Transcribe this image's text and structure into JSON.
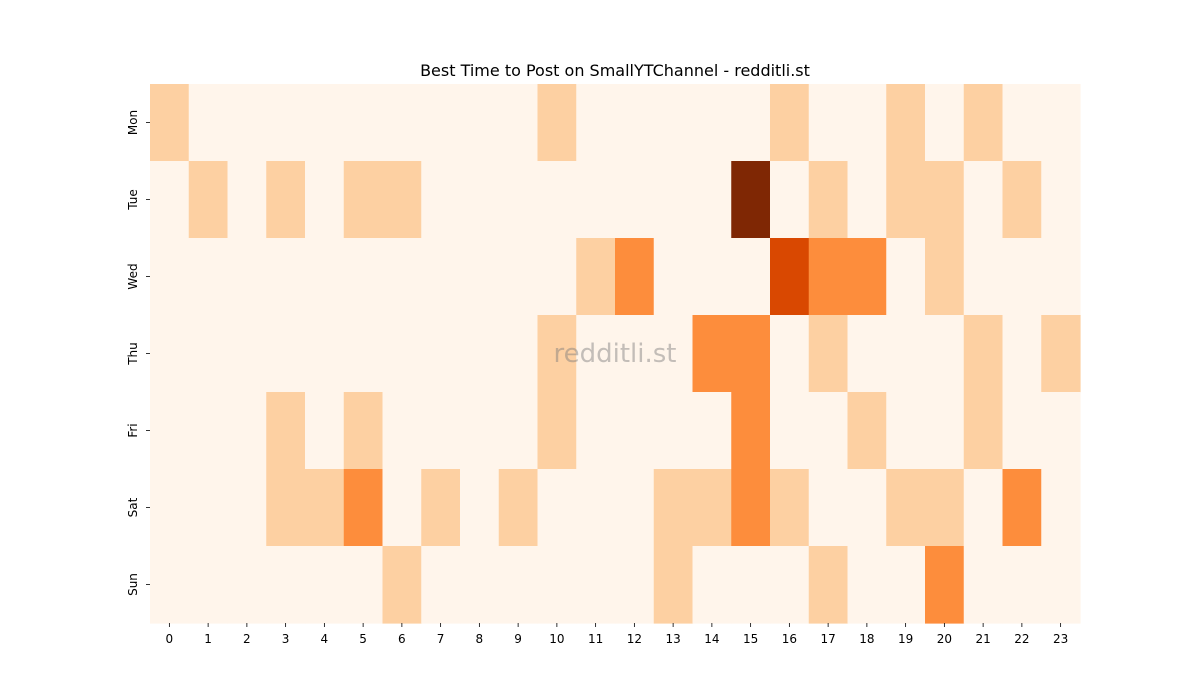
{
  "chart_data": {
    "type": "heatmap",
    "title": "Best Time to Post on SmallYTChannel - redditli.st",
    "xlabel": "",
    "ylabel": "",
    "watermark": "redditli.st",
    "x_categories": [
      "0",
      "1",
      "2",
      "3",
      "4",
      "5",
      "6",
      "7",
      "8",
      "9",
      "10",
      "11",
      "12",
      "13",
      "14",
      "15",
      "16",
      "17",
      "18",
      "19",
      "20",
      "21",
      "22",
      "23"
    ],
    "y_categories": [
      "Mon",
      "Tue",
      "Wed",
      "Thu",
      "Fri",
      "Sat",
      "Sun"
    ],
    "value_range": [
      0,
      4
    ],
    "colormap": "Oranges",
    "colors": [
      "#fff5eb",
      "#fdd0a2",
      "#fd8d3c",
      "#d94801",
      "#7f2704"
    ],
    "values": [
      [
        1,
        0,
        0,
        0,
        0,
        0,
        0,
        0,
        0,
        0,
        1,
        0,
        0,
        0,
        0,
        0,
        1,
        0,
        0,
        1,
        0,
        1,
        0,
        0
      ],
      [
        0,
        1,
        0,
        1,
        0,
        1,
        1,
        0,
        0,
        0,
        0,
        0,
        0,
        0,
        0,
        4,
        0,
        1,
        0,
        1,
        1,
        0,
        1,
        0
      ],
      [
        0,
        0,
        0,
        0,
        0,
        0,
        0,
        0,
        0,
        0,
        0,
        1,
        2,
        0,
        0,
        0,
        3,
        2,
        2,
        0,
        1,
        0,
        0,
        0
      ],
      [
        0,
        0,
        0,
        0,
        0,
        0,
        0,
        0,
        0,
        0,
        1,
        0,
        0,
        0,
        2,
        2,
        0,
        1,
        0,
        0,
        0,
        1,
        0,
        1
      ],
      [
        0,
        0,
        0,
        1,
        0,
        1,
        0,
        0,
        0,
        0,
        1,
        0,
        0,
        0,
        0,
        2,
        0,
        0,
        1,
        0,
        0,
        1,
        0,
        0
      ],
      [
        0,
        0,
        0,
        1,
        1,
        2,
        0,
        1,
        0,
        1,
        0,
        0,
        0,
        1,
        1,
        2,
        1,
        0,
        0,
        1,
        1,
        0,
        2,
        0
      ],
      [
        0,
        0,
        0,
        0,
        0,
        0,
        1,
        0,
        0,
        0,
        0,
        0,
        0,
        1,
        0,
        0,
        0,
        1,
        0,
        0,
        2,
        0,
        0,
        0
      ]
    ]
  }
}
